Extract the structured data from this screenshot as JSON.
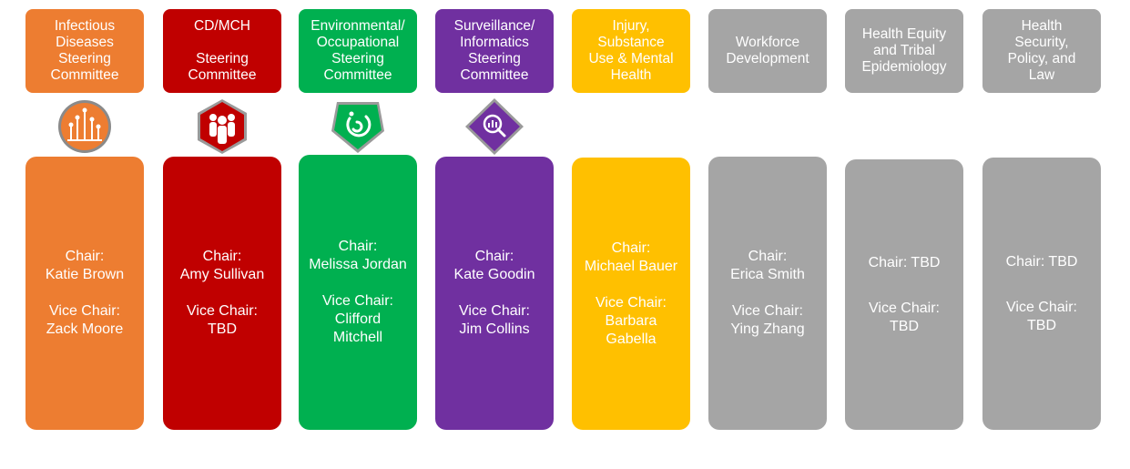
{
  "committees": [
    {
      "id": "infectious",
      "title": "Infectious\nDiseases\nSteering\nCommittee",
      "color": "#ED7D31",
      "icon": "network-nodes-icon",
      "chair": "Chair:\nKatie Brown",
      "vice": "Vice Chair:\nZack Moore"
    },
    {
      "id": "cdmch",
      "title": "CD/MCH\n\nSteering\nCommittee",
      "color": "#C00000",
      "icon": "people-group-icon",
      "chair": "Chair:\nAmy Sullivan",
      "vice": "Vice Chair:\nTBD"
    },
    {
      "id": "environmental",
      "title": "Environmental/\nOccupational\nSteering\nCommittee",
      "color": "#00B050",
      "icon": "swirl-shield-icon",
      "chair": "Chair:\nMelissa Jordan",
      "vice": "Vice Chair:\nClifford\nMitchell"
    },
    {
      "id": "surveillance",
      "title": "Surveillance/\nInformatics\nSteering\nCommittee",
      "color": "#7030A0",
      "icon": "magnifier-chart-icon",
      "chair": "Chair:\nKate Goodin",
      "vice": "Vice Chair:\nJim Collins"
    },
    {
      "id": "injury",
      "title": "Injury,\nSubstance\nUse & Mental\nHealth",
      "color": "#FFC000",
      "icon": "",
      "chair": "Chair:\nMichael Bauer",
      "vice": "Vice Chair:\nBarbara\nGabella"
    },
    {
      "id": "workforce",
      "title": "Workforce\nDevelopment",
      "color": "#A5A5A5",
      "icon": "",
      "chair": "Chair:\nErica Smith",
      "vice": "Vice Chair:\nYing Zhang"
    },
    {
      "id": "equity",
      "title": "Health Equity\nand Tribal\nEpidemiology",
      "color": "#A5A5A5",
      "icon": "",
      "chair": "Chair: TBD",
      "vice": "Vice Chair:\nTBD"
    },
    {
      "id": "security",
      "title": "Health\nSecurity,\nPolicy, and\nLaw",
      "color": "#A5A5A5",
      "icon": "",
      "chair": "Chair: TBD",
      "vice": "Vice Chair:\nTBD"
    }
  ]
}
